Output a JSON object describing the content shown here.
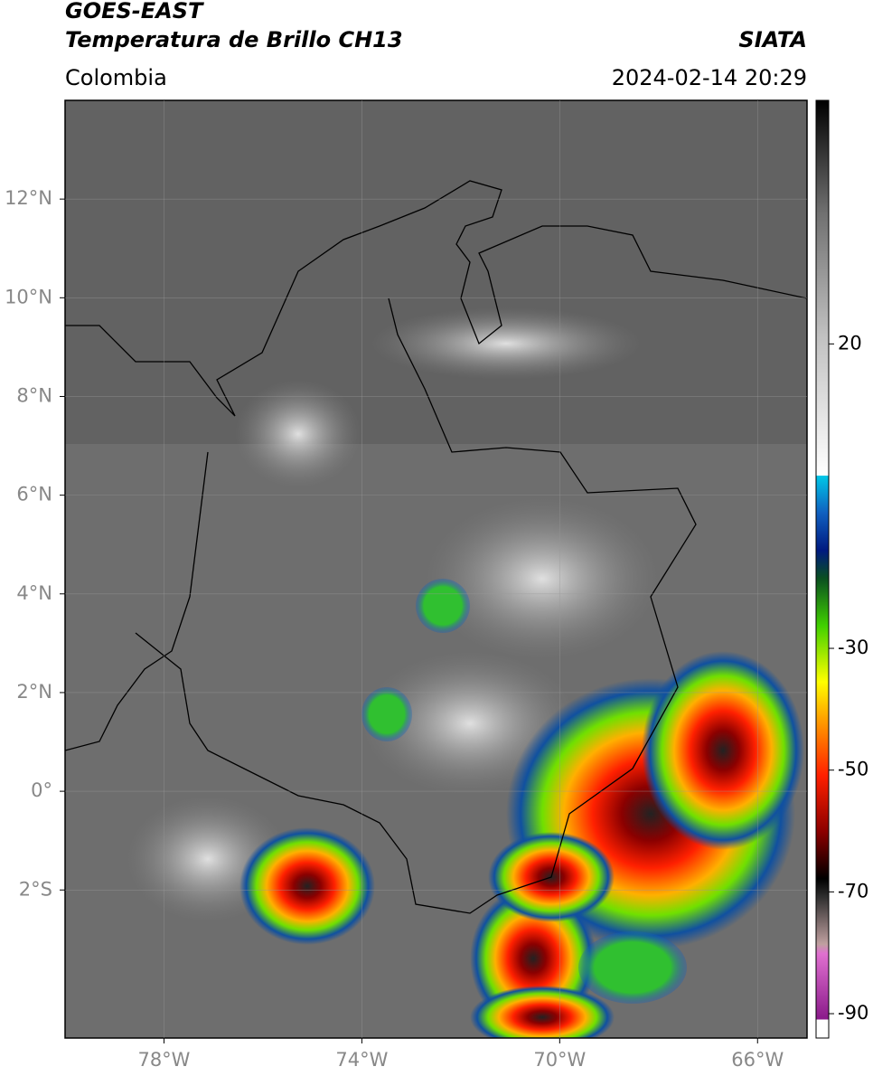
{
  "header": {
    "title": "GOES-EAST",
    "subtitle": "Temperatura de Brillo CH13",
    "source": "SIATA",
    "region": "Colombia",
    "datetime": "2024-02-14 20:29"
  },
  "map": {
    "lon_range": [
      -80,
      -65
    ],
    "lat_range": [
      -5,
      14
    ],
    "lon_ticks": [
      {
        "value": -78,
        "label": "78°W"
      },
      {
        "value": -74,
        "label": "74°W"
      },
      {
        "value": -70,
        "label": "70°W"
      },
      {
        "value": -66,
        "label": "66°W"
      }
    ],
    "lat_ticks": [
      {
        "value": 12,
        "label": "12°N"
      },
      {
        "value": 10,
        "label": "10°N"
      },
      {
        "value": 8,
        "label": "8°N"
      },
      {
        "value": 6,
        "label": "6°N"
      },
      {
        "value": 4,
        "label": "4°N"
      },
      {
        "value": 2,
        "label": "2°N"
      },
      {
        "value": 0,
        "label": "0°"
      },
      {
        "value": -2,
        "label": "2°S"
      }
    ],
    "grid": true
  },
  "colorbar": {
    "range": [
      -94,
      60
    ],
    "ticks": [
      20,
      -30,
      -50,
      -70,
      -90
    ]
  }
}
